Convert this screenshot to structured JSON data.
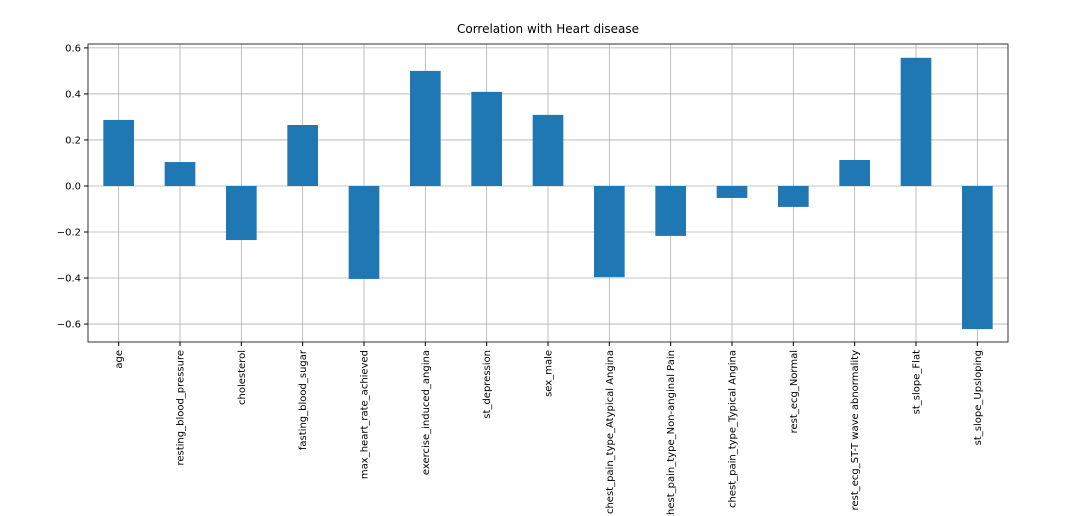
{
  "chart_data": {
    "type": "bar",
    "title": "Correlation with Heart disease",
    "categories": [
      "age",
      "resting_blood_pressure",
      "cholesterol",
      "fasting_blood_sugar",
      "max_heart_rate_achieved",
      "exercise_induced_angina",
      "st_depression",
      "sex_male",
      "chest_pain_type_Atypical Angina",
      "chest_pain_type_Non-anginal Pain",
      "chest_pain_type_Typical Angina",
      "rest_ecg_Normal",
      "rest_ecg_ST-T wave abnormality",
      "st_slope_Flat",
      "st_slope_Upsloping"
    ],
    "values": [
      0.287,
      0.104,
      -0.235,
      0.265,
      -0.404,
      0.5,
      0.409,
      0.309,
      -0.396,
      -0.217,
      -0.052,
      -0.091,
      0.113,
      0.557,
      -0.622
    ],
    "color": "#1f77b4",
    "ylim": [
      -0.678,
      0.617
    ],
    "yticks": [
      {
        "value": -0.6,
        "label": "−0.6"
      },
      {
        "value": -0.4,
        "label": "−0.4"
      },
      {
        "value": -0.2,
        "label": "−0.2"
      },
      {
        "value": 0,
        "label": "0.0"
      },
      0.2,
      0.4,
      0.6
    ],
    "grid": true
  }
}
